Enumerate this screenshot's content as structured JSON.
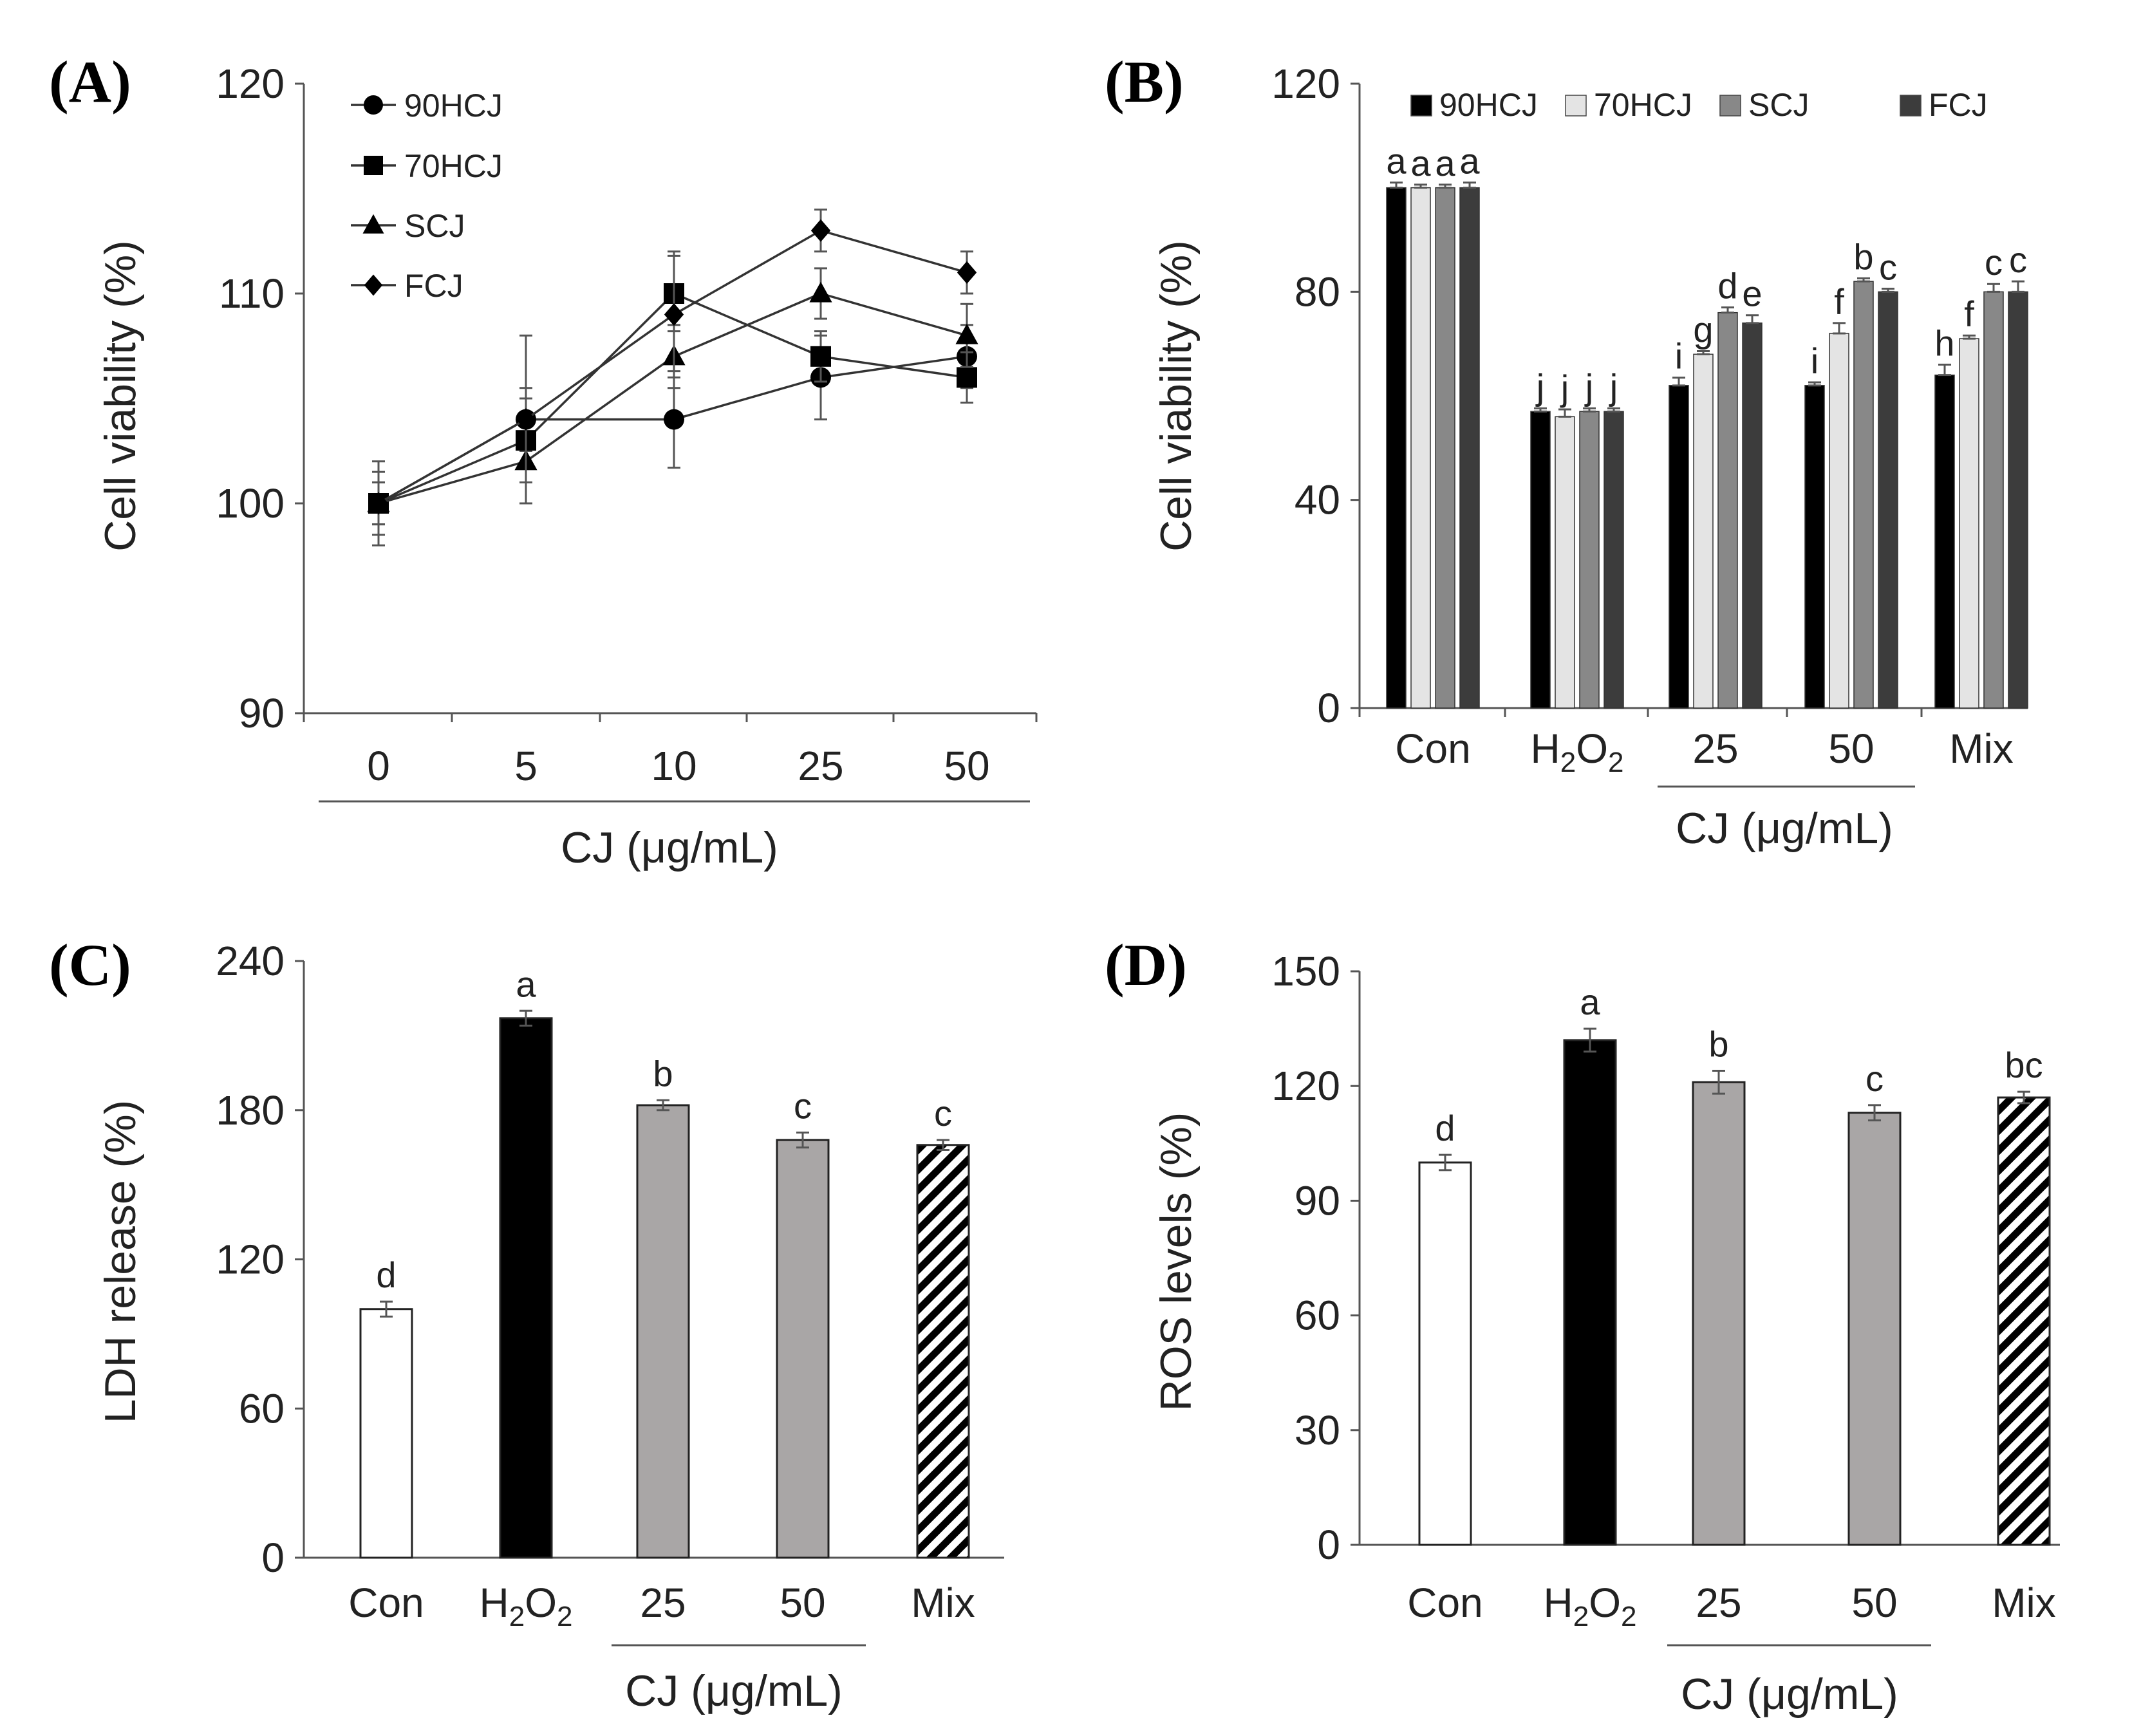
{
  "chart_data": [
    {
      "panel": "(A)",
      "type": "line",
      "ylabel": "Cell viability (%)",
      "xlabel": "CJ (μg/mL)",
      "ylim": [
        90,
        120
      ],
      "yticks": [
        90,
        100,
        110,
        120
      ],
      "categories": [
        "0",
        "5",
        "10",
        "25",
        "50"
      ],
      "series": [
        {
          "name": "90HCJ",
          "marker": "circle",
          "values": [
            100,
            104,
            104,
            106,
            107
          ],
          "errors": [
            1.0,
            1.5,
            2.3,
            2.0,
            1.5
          ]
        },
        {
          "name": "70HCJ",
          "marker": "square",
          "values": [
            100,
            103,
            110,
            107,
            106
          ],
          "errors": [
            1.0,
            2.0,
            1.8,
            1.2,
            1.2
          ]
        },
        {
          "name": "SCJ",
          "marker": "triangle",
          "values": [
            100,
            102,
            107,
            110,
            108
          ],
          "errors": [
            1.5,
            2.0,
            1.5,
            1.2,
            1.5
          ]
        },
        {
          "name": "FCJ",
          "marker": "diamond",
          "values": [
            100,
            104,
            109,
            113,
            111
          ],
          "errors": [
            2.0,
            4.0,
            3.0,
            1.0,
            1.0
          ]
        }
      ]
    },
    {
      "panel": "(B)",
      "type": "bar",
      "ylabel": "Cell viability (%)",
      "xlabel": "CJ (μg/mL)",
      "ylim": [
        0,
        120
      ],
      "yticks": [
        0,
        40,
        80,
        120
      ],
      "categories": [
        "Con",
        "H2O2",
        "25",
        "50",
        "Mix"
      ],
      "series": [
        {
          "name": "90HCJ",
          "color": "#000000",
          "values": [
            100,
            57,
            62,
            62,
            64
          ],
          "errors": [
            1.0,
            0.6,
            1.5,
            0.6,
            2.0
          ],
          "letters": [
            "a",
            "j",
            "i",
            "i",
            "h"
          ]
        },
        {
          "name": "70HCJ",
          "color": "#e4e4e4",
          "values": [
            100,
            56,
            68,
            72,
            71
          ],
          "errors": [
            0.6,
            1.4,
            0.6,
            2.0,
            0.6
          ],
          "letters": [
            "a",
            "j",
            "g",
            "f",
            "f"
          ]
        },
        {
          "name": "SCJ",
          "color": "#888888",
          "values": [
            100,
            57,
            76,
            82,
            80
          ],
          "errors": [
            0.6,
            0.6,
            1.0,
            0.6,
            1.5
          ],
          "letters": [
            "a",
            "j",
            "d",
            "b",
            "c"
          ]
        },
        {
          "name": "FCJ",
          "color": "#3c3c3c",
          "values": [
            100,
            57,
            74,
            80,
            80
          ],
          "errors": [
            1.0,
            0.6,
            1.5,
            0.6,
            2.0
          ],
          "letters": [
            "a",
            "j",
            "e",
            "c",
            "c"
          ]
        }
      ]
    },
    {
      "panel": "(C)",
      "type": "bar",
      "ylabel": "LDH release (%)",
      "xlabel": "CJ (μg/mL)",
      "ylim": [
        0,
        240
      ],
      "yticks": [
        0,
        60,
        120,
        180,
        240
      ],
      "categories": [
        "Con",
        "H2O2",
        "25",
        "50",
        "Mix"
      ],
      "values": [
        100,
        217,
        182,
        168,
        166
      ],
      "errors": [
        3,
        3,
        2,
        3,
        2
      ],
      "fills": [
        "white",
        "black",
        "gray",
        "gray",
        "hatch"
      ],
      "letters": [
        "d",
        "a",
        "b",
        "c",
        "c"
      ]
    },
    {
      "panel": "(D)",
      "type": "bar",
      "ylabel": "ROS levels (%)",
      "xlabel": "CJ (μg/mL)",
      "ylim": [
        0,
        150
      ],
      "yticks": [
        0,
        30,
        60,
        90,
        120,
        150
      ],
      "categories": [
        "Con",
        "H2O2",
        "25",
        "50",
        "Mix"
      ],
      "values": [
        100,
        132,
        121,
        113,
        117
      ],
      "errors": [
        2,
        3,
        3,
        2,
        1.5
      ],
      "fills": [
        "white",
        "black",
        "gray",
        "gray",
        "hatch"
      ],
      "letters": [
        "d",
        "a",
        "b",
        "c",
        "bc"
      ]
    }
  ]
}
